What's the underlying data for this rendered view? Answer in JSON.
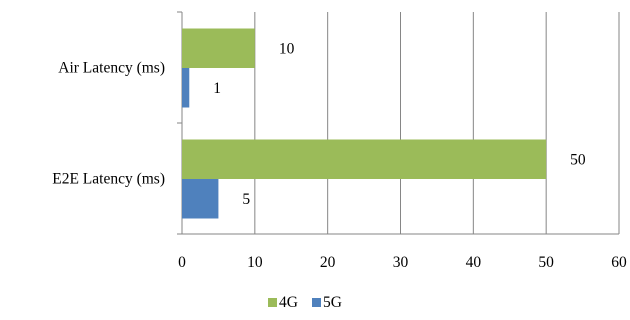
{
  "chart_data": {
    "type": "bar",
    "orientation": "horizontal",
    "categories": [
      "Air Latency (ms)",
      "E2E Latency (ms)"
    ],
    "series": [
      {
        "name": "4G",
        "color": "#9bbb59",
        "values": [
          10,
          50
        ]
      },
      {
        "name": "5G",
        "color": "#4f81bd",
        "values": [
          1,
          5
        ]
      }
    ],
    "xlim": [
      0,
      60
    ],
    "xticks": [
      0,
      10,
      20,
      30,
      40,
      50,
      60
    ],
    "title": "",
    "xlabel": "",
    "ylabel": "",
    "grid": true,
    "legend": "bottom-center",
    "data_labels": true
  }
}
